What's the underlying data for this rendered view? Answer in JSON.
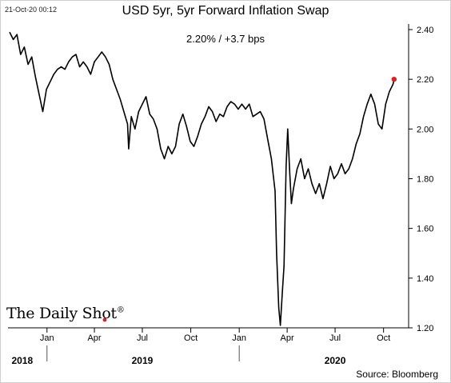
{
  "timestamp": "21-Oct-20 00:12",
  "logo_text": "The Daily Shot",
  "logo_mark": "®",
  "source": "Source: Bloomberg",
  "chart_data": {
    "type": "line",
    "title": "USD 5yr, 5yr Forward Inflation Swap",
    "subtitle": "2.20%  /  +3.7 bps",
    "ylim": [
      1.2,
      2.4
    ],
    "y_ticks": [
      "1.20",
      "1.40",
      "1.60",
      "1.80",
      "2.00",
      "2.20",
      "2.40"
    ],
    "x_tick_labels": [
      "Jan",
      "Apr",
      "Jul",
      "Oct",
      "Jan",
      "Apr",
      "Jul",
      "Oct"
    ],
    "x_tick_dates": [
      "2019-01-01",
      "2019-04-01",
      "2019-07-01",
      "2019-10-01",
      "2020-01-01",
      "2020-04-01",
      "2020-07-01",
      "2020-10-01"
    ],
    "years": [
      {
        "label": "2018",
        "date": "2018-11-15"
      },
      {
        "label": "2019",
        "date": "2019-07-01"
      },
      {
        "label": "2020",
        "date": "2020-07-01"
      }
    ],
    "year_separators": [
      "2019-01-01",
      "2020-01-01"
    ],
    "xlim": [
      "2018-10-22",
      "2020-11-10"
    ],
    "grid": false,
    "last_point_marker": true,
    "series": [
      {
        "color": "#000000",
        "points": [
          [
            "2018-10-22",
            2.39
          ],
          [
            "2018-10-29",
            2.36
          ],
          [
            "2018-11-05",
            2.38
          ],
          [
            "2018-11-12",
            2.3
          ],
          [
            "2018-11-19",
            2.33
          ],
          [
            "2018-11-26",
            2.26
          ],
          [
            "2018-12-03",
            2.29
          ],
          [
            "2018-12-10",
            2.21
          ],
          [
            "2018-12-17",
            2.14
          ],
          [
            "2018-12-24",
            2.07
          ],
          [
            "2018-12-31",
            2.16
          ],
          [
            "2019-01-07",
            2.19
          ],
          [
            "2019-01-14",
            2.22
          ],
          [
            "2019-01-21",
            2.24
          ],
          [
            "2019-01-28",
            2.25
          ],
          [
            "2019-02-04",
            2.24
          ],
          [
            "2019-02-11",
            2.27
          ],
          [
            "2019-02-18",
            2.29
          ],
          [
            "2019-02-25",
            2.3
          ],
          [
            "2019-03-04",
            2.25
          ],
          [
            "2019-03-11",
            2.27
          ],
          [
            "2019-03-18",
            2.25
          ],
          [
            "2019-03-25",
            2.22
          ],
          [
            "2019-04-01",
            2.27
          ],
          [
            "2019-04-08",
            2.29
          ],
          [
            "2019-04-15",
            2.31
          ],
          [
            "2019-04-22",
            2.29
          ],
          [
            "2019-04-29",
            2.26
          ],
          [
            "2019-05-06",
            2.2
          ],
          [
            "2019-05-13",
            2.16
          ],
          [
            "2019-05-20",
            2.12
          ],
          [
            "2019-05-27",
            2.07
          ],
          [
            "2019-06-03",
            2.02
          ],
          [
            "2019-06-05",
            1.92
          ],
          [
            "2019-06-10",
            2.05
          ],
          [
            "2019-06-17",
            2.0
          ],
          [
            "2019-06-24",
            2.07
          ],
          [
            "2019-07-01",
            2.1
          ],
          [
            "2019-07-08",
            2.13
          ],
          [
            "2019-07-15",
            2.06
          ],
          [
            "2019-07-22",
            2.04
          ],
          [
            "2019-07-29",
            2.0
          ],
          [
            "2019-08-05",
            1.92
          ],
          [
            "2019-08-12",
            1.88
          ],
          [
            "2019-08-19",
            1.93
          ],
          [
            "2019-08-26",
            1.9
          ],
          [
            "2019-09-02",
            1.93
          ],
          [
            "2019-09-09",
            2.02
          ],
          [
            "2019-09-16",
            2.06
          ],
          [
            "2019-09-23",
            2.01
          ],
          [
            "2019-09-30",
            1.95
          ],
          [
            "2019-10-07",
            1.93
          ],
          [
            "2019-10-14",
            1.97
          ],
          [
            "2019-10-21",
            2.02
          ],
          [
            "2019-10-28",
            2.05
          ],
          [
            "2019-11-04",
            2.09
          ],
          [
            "2019-11-11",
            2.07
          ],
          [
            "2019-11-18",
            2.03
          ],
          [
            "2019-11-25",
            2.06
          ],
          [
            "2019-12-02",
            2.05
          ],
          [
            "2019-12-09",
            2.09
          ],
          [
            "2019-12-16",
            2.11
          ],
          [
            "2019-12-23",
            2.1
          ],
          [
            "2019-12-30",
            2.08
          ],
          [
            "2020-01-06",
            2.1
          ],
          [
            "2020-01-13",
            2.08
          ],
          [
            "2020-01-20",
            2.1
          ],
          [
            "2020-01-27",
            2.05
          ],
          [
            "2020-02-03",
            2.06
          ],
          [
            "2020-02-10",
            2.07
          ],
          [
            "2020-02-17",
            2.04
          ],
          [
            "2020-02-24",
            1.96
          ],
          [
            "2020-03-02",
            1.88
          ],
          [
            "2020-03-09",
            1.75
          ],
          [
            "2020-03-12",
            1.5
          ],
          [
            "2020-03-16",
            1.28
          ],
          [
            "2020-03-19",
            1.21
          ],
          [
            "2020-03-23",
            1.35
          ],
          [
            "2020-03-26",
            1.45
          ],
          [
            "2020-03-30",
            1.85
          ],
          [
            "2020-04-02",
            2.0
          ],
          [
            "2020-04-06",
            1.82
          ],
          [
            "2020-04-09",
            1.7
          ],
          [
            "2020-04-13",
            1.76
          ],
          [
            "2020-04-20",
            1.84
          ],
          [
            "2020-04-27",
            1.88
          ],
          [
            "2020-05-04",
            1.8
          ],
          [
            "2020-05-11",
            1.84
          ],
          [
            "2020-05-18",
            1.78
          ],
          [
            "2020-05-25",
            1.74
          ],
          [
            "2020-06-01",
            1.78
          ],
          [
            "2020-06-08",
            1.72
          ],
          [
            "2020-06-15",
            1.78
          ],
          [
            "2020-06-22",
            1.85
          ],
          [
            "2020-06-29",
            1.8
          ],
          [
            "2020-07-06",
            1.82
          ],
          [
            "2020-07-13",
            1.86
          ],
          [
            "2020-07-20",
            1.82
          ],
          [
            "2020-07-27",
            1.84
          ],
          [
            "2020-08-03",
            1.88
          ],
          [
            "2020-08-10",
            1.94
          ],
          [
            "2020-08-17",
            1.98
          ],
          [
            "2020-08-24",
            2.05
          ],
          [
            "2020-08-31",
            2.1
          ],
          [
            "2020-09-07",
            2.14
          ],
          [
            "2020-09-14",
            2.1
          ],
          [
            "2020-09-21",
            2.02
          ],
          [
            "2020-09-28",
            2.0
          ],
          [
            "2020-10-05",
            2.1
          ],
          [
            "2020-10-12",
            2.15
          ],
          [
            "2020-10-19",
            2.18
          ],
          [
            "2020-10-21",
            2.2
          ]
        ]
      }
    ]
  }
}
